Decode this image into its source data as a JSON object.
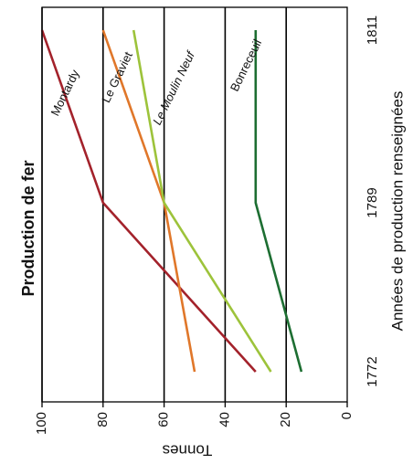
{
  "chart_data": {
    "type": "line",
    "title": "Production de fer",
    "xlabel": "Années de production renseignées",
    "ylabel": "Tonnes",
    "x_ticks": [
      "1772",
      "1789",
      "1811"
    ],
    "y_ticks": [
      "100",
      "80",
      "60",
      "40",
      "20",
      "0"
    ],
    "ylim": [
      0,
      100
    ],
    "x": [
      1772,
      1789,
      1811
    ],
    "grid": "horizontal lines at 20, 40, 60, 80, 100",
    "orientation": "figure rotated 90° clockwise",
    "series": [
      {
        "name": "Montardy",
        "color": "#a3222b",
        "values": [
          30,
          80,
          100
        ]
      },
      {
        "name": "Le Graviet",
        "color": "#e0772a",
        "values": [
          50,
          60,
          80
        ]
      },
      {
        "name": "Le Moulin Neuf",
        "color": "#9dc33b",
        "values": [
          25,
          60,
          70
        ]
      },
      {
        "name": "Bonreceuil",
        "color": "#1d6e32",
        "values": [
          15,
          30,
          30
        ]
      }
    ]
  }
}
